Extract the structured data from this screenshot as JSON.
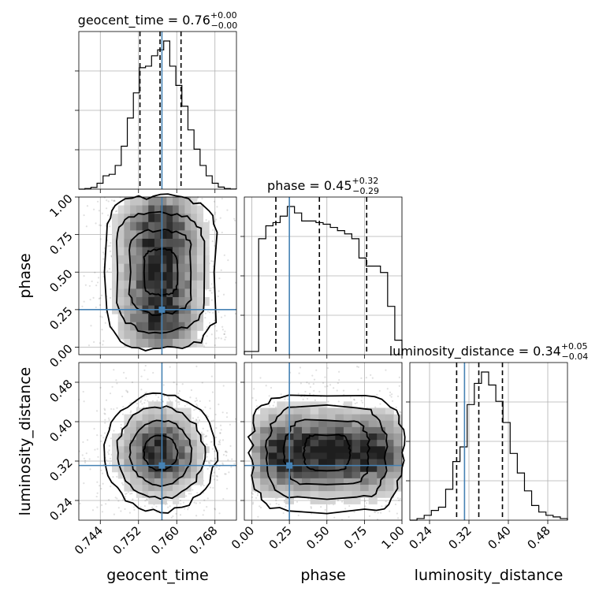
{
  "chart_data": {
    "type": "corner",
    "parameters": [
      {
        "name": "geocent_time",
        "axis_label": "geocent_time",
        "title": {
          "prefix": "geocent_time = 0.76",
          "sup": "+0.00",
          "sub": "−0.00"
        },
        "range": [
          0.7395,
          0.7725
        ],
        "ticks": [
          "0.744",
          "0.752",
          "0.760",
          "0.768"
        ],
        "tick_values": [
          0.744,
          0.752,
          0.76,
          0.768
        ],
        "truth": 0.7569,
        "quantiles": [
          0.7523,
          0.7565,
          0.7609
        ],
        "hist": [
          0,
          0.4,
          1.2,
          4,
          9,
          10,
          16,
          29,
          48,
          65,
          82,
          83,
          90,
          94,
          100,
          83,
          70,
          56,
          40,
          27,
          16,
          9,
          4,
          1.4,
          0.4,
          0.1
        ]
      },
      {
        "name": "phase",
        "axis_label": "phase",
        "title": {
          "prefix": "phase = 0.45",
          "sup": "+0.32",
          "sub": "−0.29"
        },
        "range": [
          -0.05,
          1.0
        ],
        "ticks": [
          "0.00",
          "0.25",
          "0.50",
          "0.75",
          "1.00"
        ],
        "tick_values": [
          0.0,
          0.25,
          0.5,
          0.75,
          1.0
        ],
        "truth": 0.25,
        "quantiles": [
          0.16,
          0.45,
          0.765
        ],
        "hist": [
          2,
          2,
          72,
          80,
          82,
          86,
          92,
          88,
          83,
          83,
          82,
          81,
          79,
          77,
          75,
          72,
          60,
          55,
          55,
          51,
          30,
          9
        ]
      },
      {
        "name": "luminosity_distance",
        "axis_label": "luminosity_distance",
        "title": {
          "prefix": "luminosity_distance = 0.34",
          "sup": "+0.05",
          "sub": "−0.04"
        },
        "range": [
          0.2,
          0.52
        ],
        "ticks": [
          "0.24",
          "0.32",
          "0.40",
          "0.48"
        ],
        "tick_values": [
          0.24,
          0.32,
          0.4,
          0.48
        ],
        "truth": 0.311,
        "quantiles": [
          0.295,
          0.34,
          0.388
        ],
        "hist": [
          0,
          1,
          3,
          6,
          8,
          19,
          36,
          45,
          71,
          84,
          91,
          83,
          73,
          60,
          41,
          29,
          18,
          9,
          5,
          3,
          2,
          1
        ]
      }
    ],
    "truths": {
      "geocent_time": 0.7569,
      "phase": 0.25,
      "luminosity_distance": 0.311
    },
    "contour_levels": [
      0.118,
      0.393,
      0.675,
      0.864
    ],
    "grid": true,
    "truth_color": "#4682b4",
    "line_color": "#000000"
  }
}
